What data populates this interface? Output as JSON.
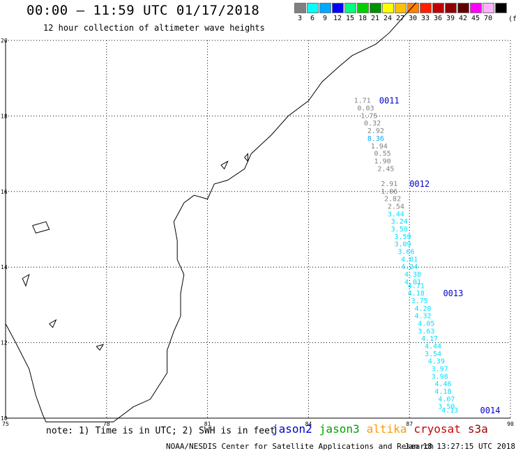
{
  "header": {
    "title": "00:00 – 11:59 UTC 01/17/2018",
    "subtitle": "12 hour collection of altimeter wave heights"
  },
  "legend": {
    "unit": "(ft)",
    "items": [
      {
        "label": "3",
        "color": "#808080"
      },
      {
        "label": "6",
        "color": "#00ffff"
      },
      {
        "label": "9",
        "color": "#00a8ff"
      },
      {
        "label": "12",
        "color": "#0000ff"
      },
      {
        "label": "15",
        "color": "#00ff80"
      },
      {
        "label": "18",
        "color": "#00d000"
      },
      {
        "label": "21",
        "color": "#009000"
      },
      {
        "label": "24",
        "color": "#ffff00"
      },
      {
        "label": "27",
        "color": "#ffc000"
      },
      {
        "label": "30",
        "color": "#ff8000"
      },
      {
        "label": "33",
        "color": "#ff2000"
      },
      {
        "label": "36",
        "color": "#c00000"
      },
      {
        "label": "39",
        "color": "#900000"
      },
      {
        "label": "42",
        "color": "#600000"
      },
      {
        "label": "45",
        "color": "#ff00ff"
      },
      {
        "label": "70",
        "color": "#ffb0ff"
      },
      {
        "label": "",
        "color": "#000000"
      }
    ]
  },
  "map": {
    "lon_range": [
      75,
      90
    ],
    "lat_range": [
      10,
      20
    ],
    "x_ticks": [
      "75",
      "78",
      "81",
      "84",
      "87",
      "90"
    ],
    "y_ticks": [
      "10",
      "12",
      "14",
      "16",
      "18",
      "20"
    ],
    "orbit_labels": [
      {
        "text": "0011",
        "lon": 86.1,
        "lat": 18.4
      },
      {
        "text": "0012",
        "lon": 87.0,
        "lat": 16.2
      },
      {
        "text": "0013",
        "lon": 88.0,
        "lat": 13.3
      },
      {
        "text": "0014",
        "lon": 89.1,
        "lat": 10.2
      }
    ],
    "wave_heights": [
      {
        "v": "1.71",
        "lon": 85.6,
        "lat": 18.4,
        "c": "#808080"
      },
      {
        "v": "0.03",
        "lon": 85.7,
        "lat": 18.2,
        "c": "#808080"
      },
      {
        "v": "1.75",
        "lon": 85.8,
        "lat": 18.0,
        "c": "#808080"
      },
      {
        "v": "0.32",
        "lon": 85.9,
        "lat": 17.8,
        "c": "#808080"
      },
      {
        "v": "2.92",
        "lon": 86.0,
        "lat": 17.6,
        "c": "#808080"
      },
      {
        "v": "8.36",
        "lon": 86.0,
        "lat": 17.4,
        "c": "#00a8ff"
      },
      {
        "v": "1.94",
        "lon": 86.1,
        "lat": 17.2,
        "c": "#808080"
      },
      {
        "v": "0.55",
        "lon": 86.2,
        "lat": 17.0,
        "c": "#808080"
      },
      {
        "v": "1.90",
        "lon": 86.2,
        "lat": 16.8,
        "c": "#808080"
      },
      {
        "v": "2.45",
        "lon": 86.3,
        "lat": 16.6,
        "c": "#808080"
      },
      {
        "v": "2.91",
        "lon": 86.4,
        "lat": 16.2,
        "c": "#808080"
      },
      {
        "v": "1.06",
        "lon": 86.4,
        "lat": 16.0,
        "c": "#808080"
      },
      {
        "v": "2.82",
        "lon": 86.5,
        "lat": 15.8,
        "c": "#808080"
      },
      {
        "v": "2.54",
        "lon": 86.6,
        "lat": 15.6,
        "c": "#808080"
      },
      {
        "v": "3.44",
        "lon": 86.6,
        "lat": 15.4,
        "c": "#00e0ff"
      },
      {
        "v": "3.24",
        "lon": 86.7,
        "lat": 15.2,
        "c": "#00e0ff"
      },
      {
        "v": "3.50",
        "lon": 86.7,
        "lat": 15.0,
        "c": "#00e0ff"
      },
      {
        "v": "3.59",
        "lon": 86.8,
        "lat": 14.8,
        "c": "#00e0ff"
      },
      {
        "v": "3.09",
        "lon": 86.8,
        "lat": 14.6,
        "c": "#00e0ff"
      },
      {
        "v": "3.66",
        "lon": 86.9,
        "lat": 14.4,
        "c": "#00e0ff"
      },
      {
        "v": "4.01",
        "lon": 87.0,
        "lat": 14.2,
        "c": "#00e0ff"
      },
      {
        "v": "4.24",
        "lon": 87.0,
        "lat": 14.0,
        "c": "#00e0ff"
      },
      {
        "v": "4.38",
        "lon": 87.1,
        "lat": 13.8,
        "c": "#00e0ff"
      },
      {
        "v": "4.01",
        "lon": 87.1,
        "lat": 13.6,
        "c": "#00e0ff"
      },
      {
        "v": "4.71",
        "lon": 87.2,
        "lat": 13.5,
        "c": "#00e0ff"
      },
      {
        "v": "4.18",
        "lon": 87.2,
        "lat": 13.3,
        "c": "#00e0ff"
      },
      {
        "v": "3.75",
        "lon": 87.3,
        "lat": 13.1,
        "c": "#00e0ff"
      },
      {
        "v": "4.20",
        "lon": 87.4,
        "lat": 12.9,
        "c": "#00e0ff"
      },
      {
        "v": "4.32",
        "lon": 87.4,
        "lat": 12.7,
        "c": "#00e0ff"
      },
      {
        "v": "4.05",
        "lon": 87.5,
        "lat": 12.5,
        "c": "#00e0ff"
      },
      {
        "v": "3.63",
        "lon": 87.5,
        "lat": 12.3,
        "c": "#00e0ff"
      },
      {
        "v": "4.17",
        "lon": 87.6,
        "lat": 12.1,
        "c": "#00e0ff"
      },
      {
        "v": "4.44",
        "lon": 87.7,
        "lat": 11.9,
        "c": "#00e0ff"
      },
      {
        "v": "3.54",
        "lon": 87.7,
        "lat": 11.7,
        "c": "#00e0ff"
      },
      {
        "v": "4.39",
        "lon": 87.8,
        "lat": 11.5,
        "c": "#00e0ff"
      },
      {
        "v": "3.97",
        "lon": 87.9,
        "lat": 11.3,
        "c": "#00e0ff"
      },
      {
        "v": "3.98",
        "lon": 87.9,
        "lat": 11.1,
        "c": "#00e0ff"
      },
      {
        "v": "4.46",
        "lon": 88.0,
        "lat": 10.9,
        "c": "#00e0ff"
      },
      {
        "v": "4.18",
        "lon": 88.0,
        "lat": 10.7,
        "c": "#00e0ff"
      },
      {
        "v": "4.07",
        "lon": 88.1,
        "lat": 10.5,
        "c": "#00e0ff"
      },
      {
        "v": "3.50",
        "lon": 88.1,
        "lat": 10.3,
        "c": "#00e0ff"
      },
      {
        "v": "4.13",
        "lon": 88.2,
        "lat": 10.2,
        "c": "#00e0ff"
      }
    ]
  },
  "footer": {
    "note": "note: 1) Time is in UTC; 2) SWH is in feet",
    "satellites": [
      {
        "name": "jason2",
        "color": "#0000cc"
      },
      {
        "name": "jason3",
        "color": "#00a000"
      },
      {
        "name": "altika",
        "color": "#ff9900"
      },
      {
        "name": "cryosat",
        "color": "#cc0000"
      },
      {
        "name": "s3a",
        "color": "#990000"
      }
    ],
    "credit": "NOAA/NESDIS Center for Satellite Applications and Research",
    "timestamp": "Jan 18 13:27:15 UTC 2018"
  }
}
